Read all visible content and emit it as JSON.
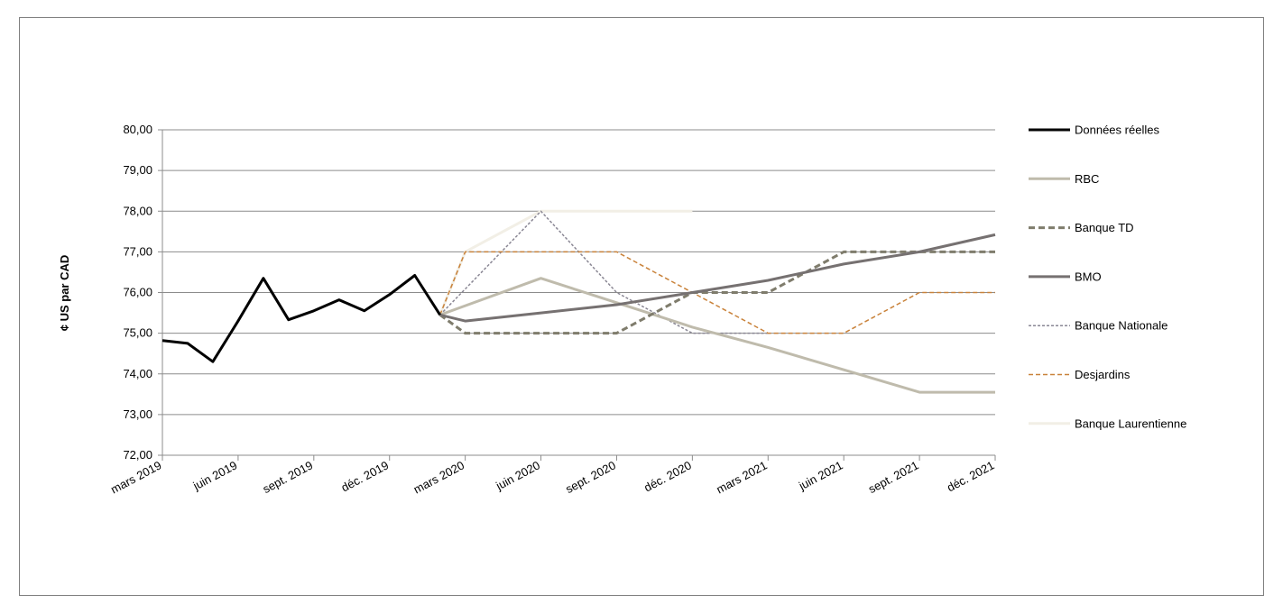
{
  "chart_data": {
    "type": "line",
    "title": "",
    "xlabel": "",
    "ylabel": "¢ US par CAD",
    "ylim": [
      72,
      80
    ],
    "y_ticks": [
      "72,00",
      "73,00",
      "74,00",
      "75,00",
      "76,00",
      "77,00",
      "78,00",
      "79,00",
      "80,00"
    ],
    "x_ticks": [
      "mars 2019",
      "juin 2019",
      "sept. 2019",
      "déc. 2019",
      "mars 2020",
      "juin 2020",
      "sept. 2020",
      "déc. 2020",
      "mars 2021",
      "juin 2021",
      "sept. 2021",
      "déc. 2021"
    ],
    "grid": "horizontal",
    "legend_position": "right",
    "series": [
      {
        "name": "Données réelles",
        "color": "#000000",
        "style": "solid-thick",
        "points": [
          [
            "2019-03",
            74.82
          ],
          [
            "2019-04",
            74.75
          ],
          [
            "2019-05",
            74.3
          ],
          [
            "2019-06",
            75.3
          ],
          [
            "2019-07",
            76.35
          ],
          [
            "2019-08",
            75.33
          ],
          [
            "2019-09",
            75.55
          ],
          [
            "2019-10",
            75.82
          ],
          [
            "2019-11",
            75.55
          ],
          [
            "2019-12",
            75.95
          ],
          [
            "2020-01",
            76.42
          ],
          [
            "2020-02",
            75.45
          ]
        ]
      },
      {
        "name": "RBC",
        "color": "#bfbbac",
        "style": "solid-thick",
        "points": [
          [
            "2020-02",
            75.45
          ],
          [
            "2020-06",
            76.35
          ],
          [
            "2020-09",
            75.75
          ],
          [
            "2020-12",
            75.15
          ],
          [
            "2021-03",
            74.65
          ],
          [
            "2021-06",
            74.1
          ],
          [
            "2021-09",
            73.55
          ],
          [
            "2021-12",
            73.55
          ]
        ]
      },
      {
        "name": "Banque TD",
        "color": "#7f7c6c",
        "style": "dashed-thick",
        "points": [
          [
            "2020-02",
            75.45
          ],
          [
            "2020-03",
            75.0
          ],
          [
            "2020-09",
            75.0
          ],
          [
            "2020-12",
            76.0
          ],
          [
            "2021-03",
            76.0
          ],
          [
            "2021-06",
            77.0
          ],
          [
            "2021-12",
            77.0
          ]
        ]
      },
      {
        "name": "BMO",
        "color": "#767171",
        "style": "solid-thick",
        "points": [
          [
            "2020-02",
            75.45
          ],
          [
            "2020-03",
            75.3
          ],
          [
            "2020-06",
            75.5
          ],
          [
            "2020-09",
            75.7
          ],
          [
            "2020-12",
            76.0
          ],
          [
            "2021-03",
            76.3
          ],
          [
            "2021-06",
            76.7
          ],
          [
            "2021-09",
            77.0
          ],
          [
            "2021-12",
            77.42
          ]
        ]
      },
      {
        "name": "Banque Nationale",
        "color": "#8a8794",
        "style": "dotted-thin",
        "points": [
          [
            "2020-02",
            75.45
          ],
          [
            "2020-06",
            78.0
          ],
          [
            "2020-09",
            76.0
          ],
          [
            "2020-12",
            75.0
          ],
          [
            "2021-03",
            75.0
          ]
        ]
      },
      {
        "name": "Desjardins",
        "color": "#c9823a",
        "style": "dashed-thin",
        "points": [
          [
            "2020-02",
            75.45
          ],
          [
            "2020-03",
            77.0
          ],
          [
            "2020-09",
            77.0
          ],
          [
            "2020-12",
            76.0
          ],
          [
            "2021-03",
            75.0
          ],
          [
            "2021-06",
            75.0
          ],
          [
            "2021-09",
            76.0
          ],
          [
            "2021-12",
            76.0
          ]
        ]
      },
      {
        "name": "Banque Laurentienne",
        "color": "#f2efe6",
        "style": "solid-thick",
        "points": [
          [
            "2020-02",
            75.45
          ],
          [
            "2020-03",
            77.0
          ],
          [
            "2020-06",
            78.0
          ],
          [
            "2020-12",
            78.0
          ]
        ]
      }
    ]
  }
}
